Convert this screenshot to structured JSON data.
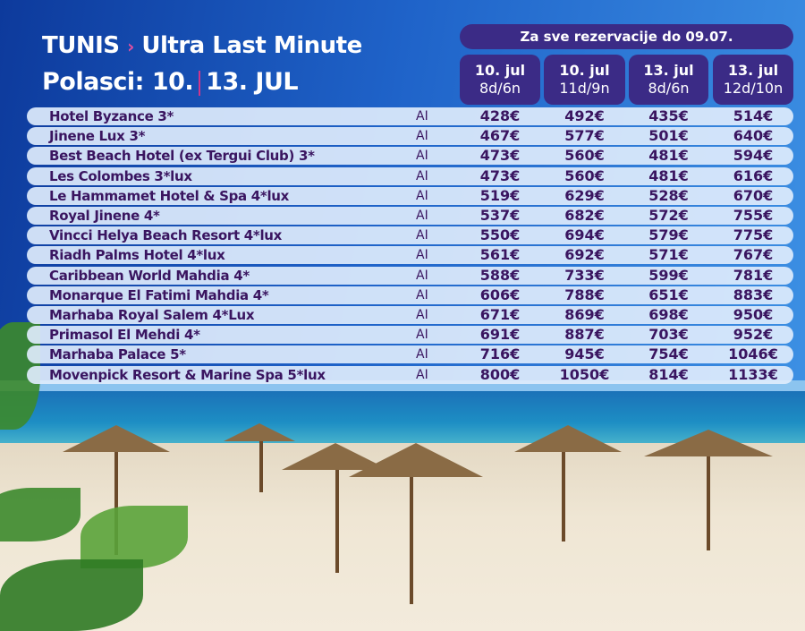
{
  "header": {
    "destination": "TUNIS",
    "arrow": "›",
    "offer": "Ultra Last Minute",
    "departures_label": "Polasci: 10.",
    "departures_second": "13. JUL",
    "booking_note": "Za sve rezervacije do 09.07."
  },
  "columns": [
    {
      "date": "10. jul",
      "duration": "8d/6n"
    },
    {
      "date": "10.  jul",
      "duration": "11d/9n"
    },
    {
      "date": "13. jul",
      "duration": "8d/6n"
    },
    {
      "date": "13. jul",
      "duration": "12d/10n"
    }
  ],
  "hotels": [
    {
      "name": "Hotel Byzance 3*",
      "board": "AI",
      "prices": [
        "428€",
        "492€",
        "435€",
        "514€"
      ]
    },
    {
      "name": "Jinene Lux 3*",
      "board": "AI",
      "prices": [
        "467€",
        "577€",
        "501€",
        "640€"
      ]
    },
    {
      "name": "Best Beach Hotel (ex Tergui Club) 3*",
      "board": "AI",
      "prices": [
        "473€",
        "560€",
        "481€",
        "594€"
      ]
    },
    {
      "name": "Les Colombes 3*lux",
      "board": "AI",
      "prices": [
        "473€",
        "560€",
        "481€",
        "616€"
      ]
    },
    {
      "name": "Le Hammamet Hotel & Spa 4*lux",
      "board": "AI",
      "prices": [
        "519€",
        "629€",
        "528€",
        "670€"
      ]
    },
    {
      "name": "Royal Jinene 4*",
      "board": "AI",
      "prices": [
        "537€",
        "682€",
        "572€",
        "755€"
      ]
    },
    {
      "name": "Vincci Helya Beach Resort 4*lux",
      "board": "AI",
      "prices": [
        "550€",
        "694€",
        "579€",
        "775€"
      ]
    },
    {
      "name": "Riadh Palms Hotel 4*lux",
      "board": "AI",
      "prices": [
        "561€",
        "692€",
        "571€",
        "767€"
      ]
    },
    {
      "name": "Caribbean World Mahdia 4*",
      "board": "AI",
      "prices": [
        "588€",
        "733€",
        "599€",
        "781€"
      ]
    },
    {
      "name": "Monarque El Fatimi Mahdia 4*",
      "board": "AI",
      "prices": [
        "606€",
        "788€",
        "651€",
        "883€"
      ]
    },
    {
      "name": "Marhaba Royal Salem 4*Lux",
      "board": "AI",
      "prices": [
        "671€",
        "869€",
        "698€",
        "950€"
      ]
    },
    {
      "name": "Primasol El Mehdi 4*",
      "board": "AI",
      "prices": [
        "691€",
        "887€",
        "703€",
        "952€"
      ]
    },
    {
      "name": "Marhaba Palace 5*",
      "board": "AI",
      "prices": [
        "716€",
        "945€",
        "754€",
        "1046€"
      ]
    },
    {
      "name": "Movenpick Resort & Marine Spa 5*lux",
      "board": "AI",
      "prices": [
        "800€",
        "1050€",
        "814€",
        "1133€"
      ]
    }
  ],
  "colors": {
    "accent_purple": "#3b2b86",
    "text_purple": "#3a1560",
    "divider_pink": "#d0368a",
    "row_bg": "#deecfc"
  }
}
